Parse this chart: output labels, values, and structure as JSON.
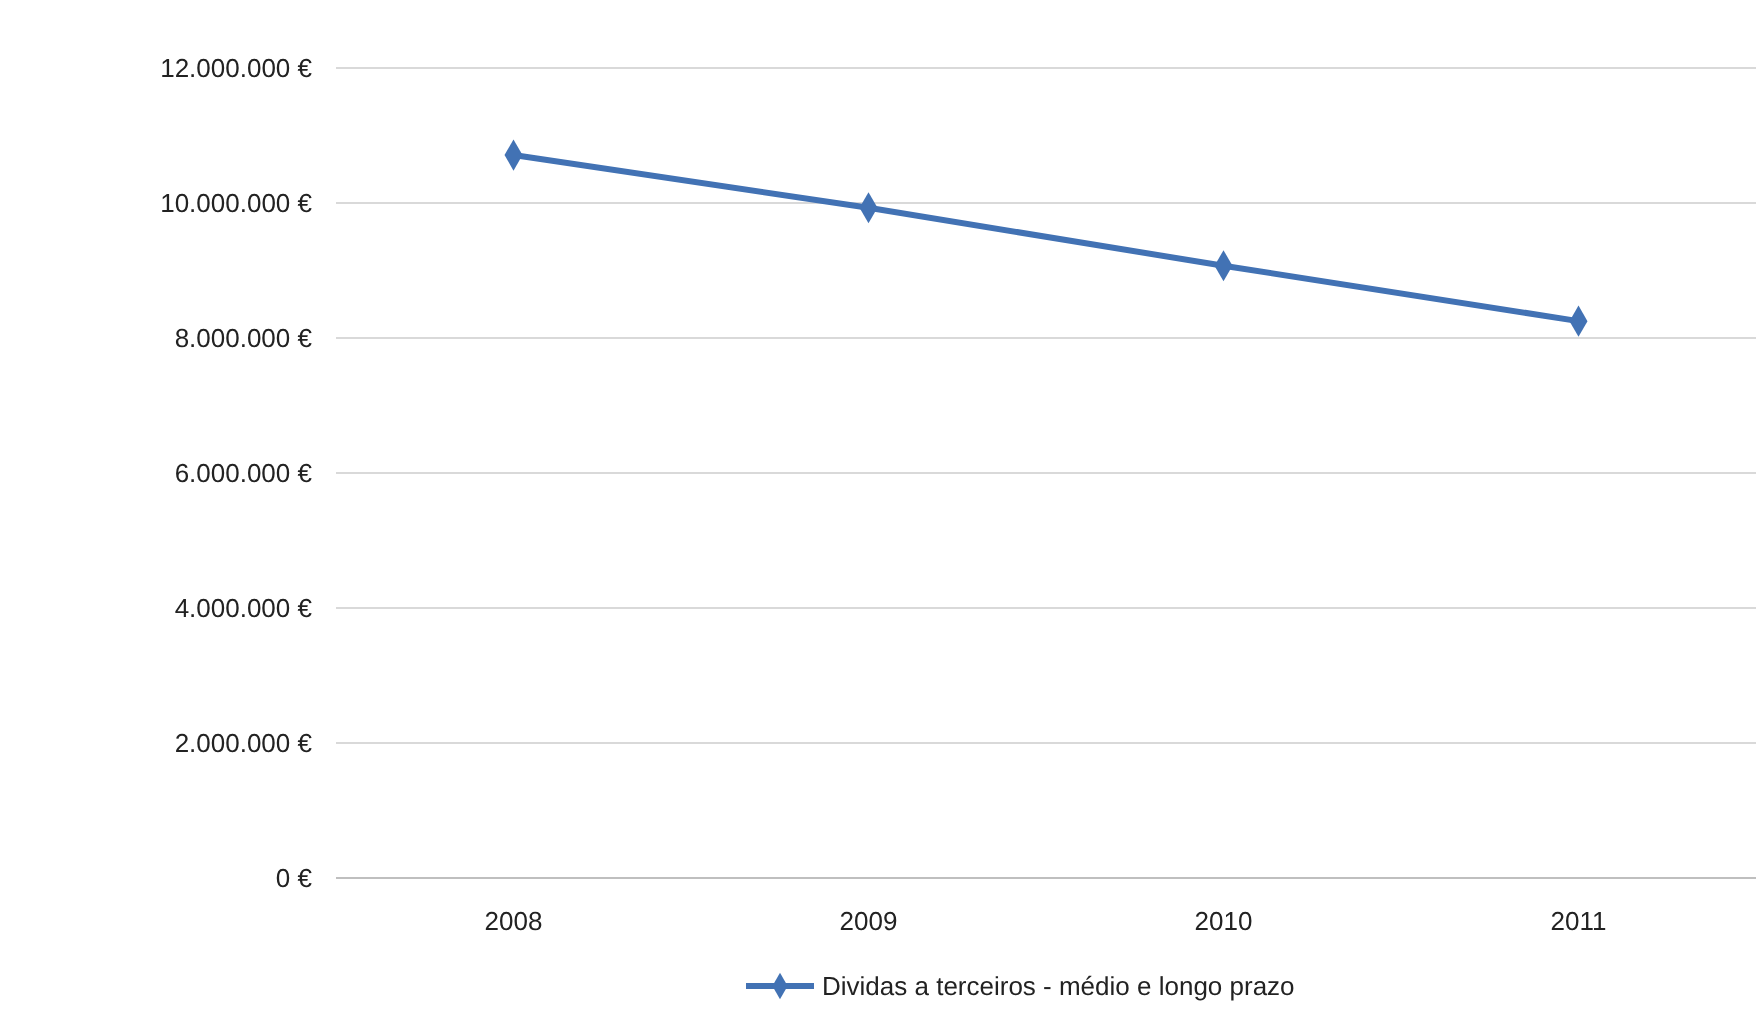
{
  "chart_data": {
    "type": "line",
    "categories": [
      "2008",
      "2009",
      "2010",
      "2011"
    ],
    "series": [
      {
        "name": "Dividas a terceiros - médio e longo prazo",
        "color": "#4272b4",
        "values": [
          10710000,
          9930000,
          9070000,
          8250000
        ]
      }
    ],
    "ylim": [
      0,
      12000000
    ],
    "yticks": [
      {
        "value": 0,
        "label": "0 €"
      },
      {
        "value": 2000000,
        "label": "2.000.000 €"
      },
      {
        "value": 4000000,
        "label": "4.000.000 €"
      },
      {
        "value": 6000000,
        "label": "6.000.000 €"
      },
      {
        "value": 8000000,
        "label": "8.000.000 €"
      },
      {
        "value": 10000000,
        "label": "10.000.000 €"
      },
      {
        "value": 12000000,
        "label": "12.000.000 €"
      }
    ],
    "grid": "y",
    "legend": "bottom",
    "marker": "diamond",
    "line_style": "solid"
  }
}
